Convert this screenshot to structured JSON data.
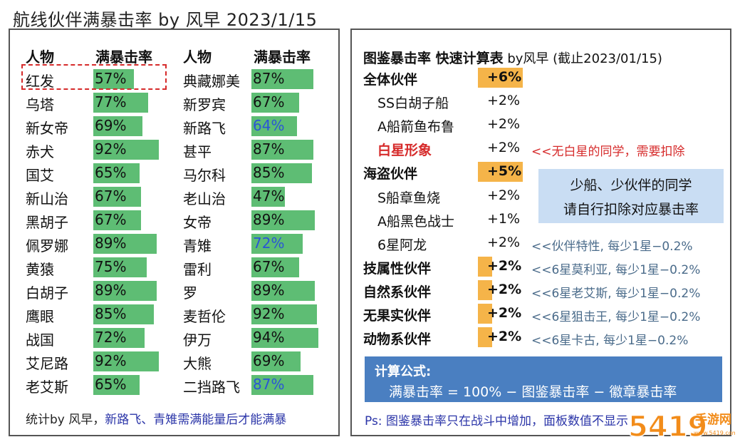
{
  "title": "航线伙伴满暴击率 by 风早 2023/1/15",
  "left": {
    "headers": [
      "人物",
      "满暴击率",
      "人物",
      "满暴击率"
    ],
    "col1": [
      {
        "name": "红发",
        "pct": "57%",
        "value": 57
      },
      {
        "name": "乌塔",
        "pct": "77%",
        "value": 77
      },
      {
        "name": "新女帝",
        "pct": "69%",
        "value": 69
      },
      {
        "name": "赤犬",
        "pct": "92%",
        "value": 92
      },
      {
        "name": "国艾",
        "pct": "65%",
        "value": 65
      },
      {
        "name": "新山治",
        "pct": "67%",
        "value": 67
      },
      {
        "name": "黑胡子",
        "pct": "67%",
        "value": 67
      },
      {
        "name": "佩罗娜",
        "pct": "89%",
        "value": 89
      },
      {
        "name": "黄猿",
        "pct": "75%",
        "value": 75
      },
      {
        "name": "白胡子",
        "pct": "89%",
        "value": 89
      },
      {
        "name": "鹰眼",
        "pct": "85%",
        "value": 85
      },
      {
        "name": "战国",
        "pct": "72%",
        "value": 72
      },
      {
        "name": "艾尼路",
        "pct": "92%",
        "value": 92
      },
      {
        "name": "老艾斯",
        "pct": "65%",
        "value": 65
      }
    ],
    "col2": [
      {
        "name": "典藏娜美",
        "pct": "87%",
        "value": 87
      },
      {
        "name": "新罗宾",
        "pct": "67%",
        "value": 67
      },
      {
        "name": "新路飞",
        "pct": "64%",
        "value": 64,
        "blue": true
      },
      {
        "name": "甚平",
        "pct": "87%",
        "value": 87
      },
      {
        "name": "马尔科",
        "pct": "85%",
        "value": 85
      },
      {
        "name": "老山治",
        "pct": "47%",
        "value": 47
      },
      {
        "name": "女帝",
        "pct": "89%",
        "value": 89
      },
      {
        "name": "青雉",
        "pct": "72%",
        "value": 72,
        "blue": true
      },
      {
        "name": "雷利",
        "pct": "67%",
        "value": 67
      },
      {
        "name": "罗",
        "pct": "89%",
        "value": 89
      },
      {
        "name": "麦哲伦",
        "pct": "92%",
        "value": 92
      },
      {
        "name": "伊万",
        "pct": "94%",
        "value": 94
      },
      {
        "name": "大熊",
        "pct": "69%",
        "value": 69
      },
      {
        "name": "二挡路飞",
        "pct": "87%",
        "value": 87,
        "blue": true
      }
    ],
    "footer_a": "统计by 风早，",
    "footer_b": "新路飞、青雉需满能量后才能满暴"
  },
  "right": {
    "title_bold": "图鉴暴击率 快速计算表",
    "title_rest": " by风早 (截止2023/01/15)",
    "rows": [
      {
        "label": "全体伙伴",
        "val": "+6%",
        "style": "bold",
        "orange": "full",
        "note": ""
      },
      {
        "label": "SS白胡子船",
        "val": "+2%",
        "style": "sub",
        "note": ""
      },
      {
        "label": "A船箭鱼布鲁",
        "val": "+2%",
        "style": "sub",
        "note": ""
      },
      {
        "label": "白星形象",
        "val": "+2%",
        "style": "red",
        "note": "<<无白星的同学，需要扣除",
        "note_red": true
      },
      {
        "label": "海盗伙伴",
        "val": "+5%",
        "style": "bold",
        "orange": "full",
        "note": ""
      },
      {
        "label": "S船章鱼烧",
        "val": "+2%",
        "style": "sub",
        "note": ""
      },
      {
        "label": "A船黑色战士",
        "val": "+1%",
        "style": "sub",
        "note": ""
      },
      {
        "label": "6星阿龙",
        "val": "+2%",
        "style": "sub",
        "note": "<<伙伴特性, 每少1星−0.2%"
      },
      {
        "label": "技属性伙伴",
        "val": "+2%",
        "style": "bold",
        "orange": "half",
        "note": "<<6星莫利亚, 每少1星−0.2%"
      },
      {
        "label": "自然系伙伴",
        "val": "+2%",
        "style": "bold",
        "orange": "half",
        "note": "<<6星老艾斯, 每少1星−0.2%"
      },
      {
        "label": "无果实伙伴",
        "val": "+2%",
        "style": "bold",
        "orange": "half",
        "note": "<<6星狙击王, 每少1星−0.2%"
      },
      {
        "label": "动物系伙伴",
        "val": "+2%",
        "style": "bold",
        "orange": "half",
        "note": "<<6星卡古, 每少1星−0.2%"
      }
    ],
    "callout_line1": "少船、少伙伴的同学",
    "callout_line2": "请自行扣除对应暴击率",
    "formula_title": "计算公式:",
    "formula_text": "满暴击率 = 100% − 图鉴暴击率 − 徽章暴击率",
    "ps": "Ps: 图鉴暴击率只在战斗中增加，面板数值不显示"
  },
  "watermark": {
    "digits": "5419",
    "text": "手游网",
    "domain": "www.5419.com"
  }
}
